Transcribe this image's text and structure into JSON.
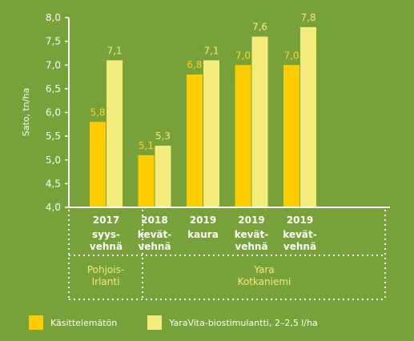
{
  "chart_data": {
    "type": "bar",
    "ylabel": "Sato, tn/ha",
    "ylim": [
      4.0,
      8.0
    ],
    "yticks": [
      "4,0",
      "4,5",
      "5,0",
      "5,5",
      "6,0",
      "6,5",
      "7,0",
      "7,5",
      "8,0"
    ],
    "categories": [
      {
        "year": "2017",
        "crop": [
          "syys-",
          "vehnä"
        ]
      },
      {
        "year": "2018",
        "crop": [
          "kevät-",
          "vehnä"
        ]
      },
      {
        "year": "2019",
        "crop": [
          "kaura"
        ]
      },
      {
        "year": "2019",
        "crop": [
          "kevät-",
          "vehnä"
        ]
      },
      {
        "year": "2019",
        "crop": [
          "kevät-",
          "vehnä"
        ]
      }
    ],
    "groups": [
      {
        "lines": [
          "Pohjois-",
          "Irlanti"
        ],
        "span": [
          0,
          0
        ]
      },
      {
        "lines": [
          "Yara",
          "Kotkaniemi"
        ],
        "span": [
          1,
          4
        ]
      }
    ],
    "series": [
      {
        "name": "Käsittelemätön",
        "color": "#ffcc00",
        "label_color": "#ffd21f",
        "values": [
          5.8,
          5.1,
          6.8,
          7.0,
          7.0
        ],
        "labels": [
          "5,8",
          "5,1",
          "6,8",
          "7,0",
          "7,0"
        ]
      },
      {
        "name": "YaraVita-biostimulantti, 2–2,5 l/ha",
        "color": "#f3ec7c",
        "label_color": "#f3ec7c",
        "values": [
          7.1,
          5.3,
          7.1,
          7.6,
          7.8
        ],
        "labels": [
          "7,1",
          "5,3",
          "7,1",
          "7,6",
          "7,8"
        ]
      }
    ],
    "grid": false,
    "legend_position": "bottom"
  }
}
